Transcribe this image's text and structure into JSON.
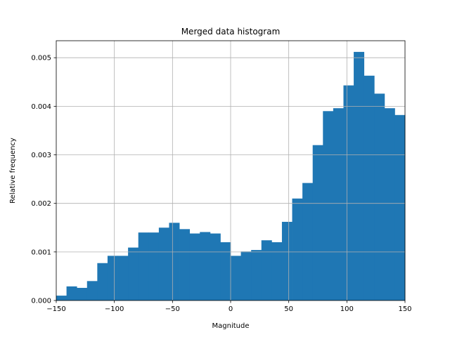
{
  "chart_data": {
    "type": "bar",
    "title": "Merged data histogram",
    "xlabel": "Magnitude",
    "ylabel": "Relative frequency",
    "xlim": [
      -150,
      150
    ],
    "ylim": [
      0,
      0.00535
    ],
    "grid": true,
    "bar_color": "#1f77b4",
    "bin_width": 8.33,
    "bin_edges_start": -150,
    "values": [
      0.0001,
      0.00029,
      0.00026,
      0.0004,
      0.00077,
      0.00092,
      0.00092,
      0.00109,
      0.0014,
      0.0014,
      0.0015,
      0.0016,
      0.00147,
      0.00138,
      0.00141,
      0.00138,
      0.0012,
      0.00092,
      0.00101,
      0.00104,
      0.00124,
      0.0012,
      0.00162,
      0.0021,
      0.00242,
      0.0032,
      0.0039,
      0.00396,
      0.00443,
      0.00512,
      0.00463,
      0.00426,
      0.00396,
      0.00382
    ],
    "x_ticks": [
      -150,
      -100,
      -50,
      0,
      50,
      100,
      150
    ],
    "x_tick_labels": [
      "−150",
      "−100",
      "−50",
      "0",
      "50",
      "100",
      "150"
    ],
    "y_ticks": [
      0,
      0.001,
      0.002,
      0.003,
      0.004,
      0.005
    ],
    "y_tick_labels": [
      "0.000",
      "0.001",
      "0.002",
      "0.003",
      "0.004",
      "0.005"
    ]
  }
}
